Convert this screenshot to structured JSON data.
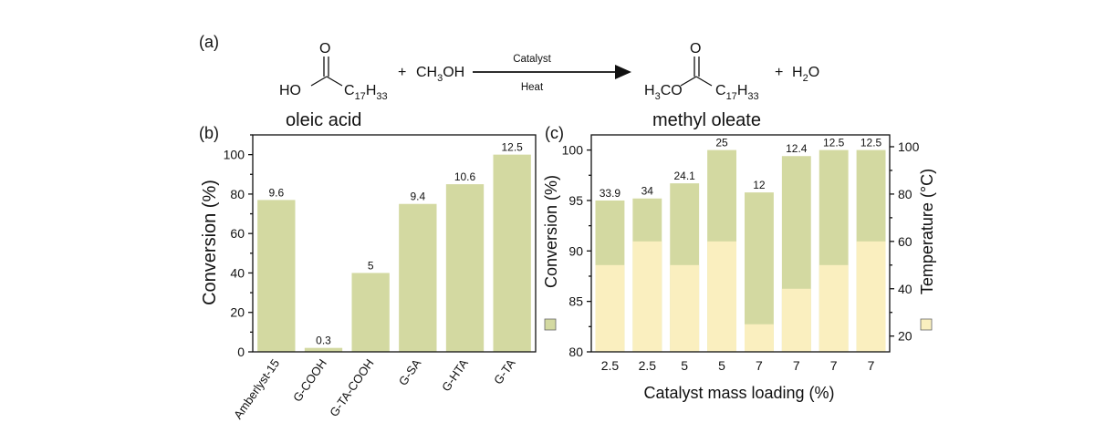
{
  "panel_a": {
    "label": "(a)",
    "acid": {
      "o": "O",
      "ho": "HO",
      "chain_main": "C",
      "chain_sub1": "17",
      "chain_h": "H",
      "chain_sub2": "33",
      "name": "oleic acid"
    },
    "plus1": "+",
    "methanol": {
      "ch": "CH",
      "sub": "3",
      "oh": "OH"
    },
    "arrow_top": "Catalyst",
    "arrow_bottom": "Heat",
    "ester": {
      "o": "O",
      "h3co_h": "H",
      "h3co_sub": "3",
      "h3co_co": "CO",
      "chain_main": "C",
      "chain_sub1": "17",
      "chain_h": "H",
      "chain_sub2": "33",
      "name": "methyl oleate"
    },
    "plus2": "+",
    "water": {
      "h": "H",
      "sub": "2",
      "o": "O"
    }
  },
  "chart_data": [
    {
      "panel": "(b)",
      "type": "bar",
      "categories": [
        "Amberlyst-15",
        "G-COOH",
        "G-TA-COOH",
        "G-SA",
        "G-HTA",
        "G-TA"
      ],
      "values": [
        77,
        2,
        40,
        75,
        85,
        100
      ],
      "data_labels": [
        "9.6",
        "0.3",
        "5",
        "9.4",
        "10.6",
        "12.5"
      ],
      "xlabel": "",
      "ylabel": "Conversion (%)",
      "ylim": [
        0,
        110
      ],
      "yticks": [
        "0",
        "20",
        "40",
        "60",
        "80",
        "100"
      ],
      "grid": false,
      "color": "#d3d9a1"
    },
    {
      "panel": "(c)",
      "type": "bar",
      "categories": [
        "2.5",
        "2.5",
        "5",
        "5",
        "7",
        "7",
        "7",
        "7"
      ],
      "xlabel": "Catalyst mass loading (%)",
      "series": [
        {
          "values": [
            95.0,
            95.2,
            96.7,
            100.0,
            95.8,
            99.4,
            100.0,
            100.0
          ],
          "data_labels": [
            "33.9",
            "34",
            "24.1",
            "25",
            "12",
            "12.4",
            "12.5",
            "12.5"
          ],
          "axis": "left",
          "color": "#d3d9a1"
        },
        {
          "values": [
            50,
            60,
            50,
            60,
            25,
            40,
            50,
            60
          ],
          "axis": "right",
          "color": "#faefbf"
        }
      ],
      "ylabel_left": "Conversion (%)",
      "ylim_left": [
        80,
        101.5
      ],
      "yticks_left": [
        "80",
        "85",
        "90",
        "95",
        "100"
      ],
      "ylabel_right": "Temperature (°C)",
      "ylim_right": [
        13.33,
        105.0
      ],
      "yticks_right": [
        "20",
        "40",
        "60",
        "80",
        "100"
      ],
      "grid": false
    }
  ]
}
